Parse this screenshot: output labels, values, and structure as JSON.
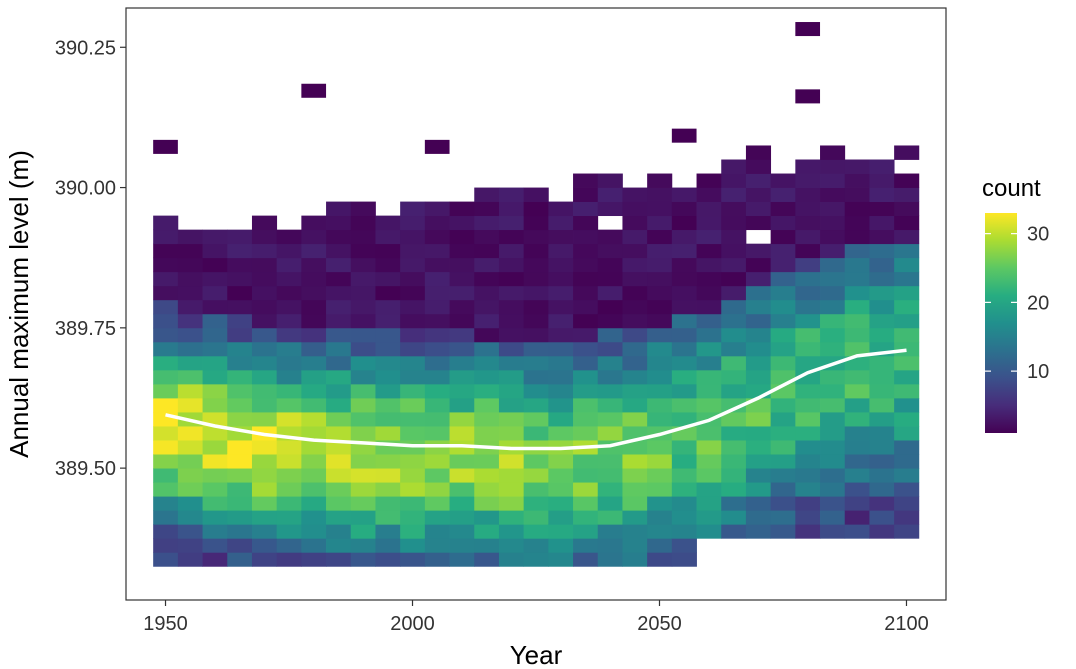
{
  "chart_data": {
    "type": "heatmap",
    "title": "",
    "xlabel": "Year",
    "ylabel": "Annual maximum level (m)",
    "xlim": [
      1942,
      2108
    ],
    "ylim": [
      389.265,
      390.32
    ],
    "x_ticks": [
      1950,
      2000,
      2050,
      2100
    ],
    "x_tick_labels": [
      "1950",
      "2000",
      "2050",
      "2100"
    ],
    "y_ticks": [
      389.5,
      389.75,
      390.0,
      390.25
    ],
    "y_tick_labels": [
      "389.50",
      "389.75",
      "390.00",
      "390.25"
    ],
    "bin_width_year": 5,
    "bin_height_m": 0.025,
    "grid": false,
    "legend": {
      "title": "count",
      "position": "right",
      "range": [
        1,
        33
      ],
      "ticks": [
        10,
        20,
        30
      ],
      "tick_labels": [
        "10",
        "20",
        "30"
      ],
      "colors": [
        "#440154",
        "#472c7a",
        "#3b518b",
        "#2c718e",
        "#21908d",
        "#27ad81",
        "#5cc863",
        "#aadc32",
        "#fde725"
      ]
    },
    "bins_x": [
      1950,
      1955,
      1960,
      1965,
      1970,
      1975,
      1980,
      1985,
      1990,
      1995,
      2000,
      2005,
      2010,
      2015,
      2020,
      2025,
      2030,
      2035,
      2040,
      2045,
      2050,
      2055,
      2060,
      2065,
      2070,
      2075,
      2080,
      2085,
      2090,
      2095,
      2100
    ],
    "trend_line": {
      "color": "#ffffff",
      "x": [
        1950,
        1960,
        1970,
        1980,
        1990,
        2000,
        2010,
        2020,
        2030,
        2040,
        2050,
        2060,
        2070,
        2080,
        2090,
        2100
      ],
      "y": [
        389.595,
        389.575,
        389.56,
        389.55,
        389.545,
        389.54,
        389.54,
        389.535,
        389.535,
        389.54,
        389.56,
        389.585,
        389.625,
        389.67,
        389.7,
        389.71
      ]
    }
  }
}
